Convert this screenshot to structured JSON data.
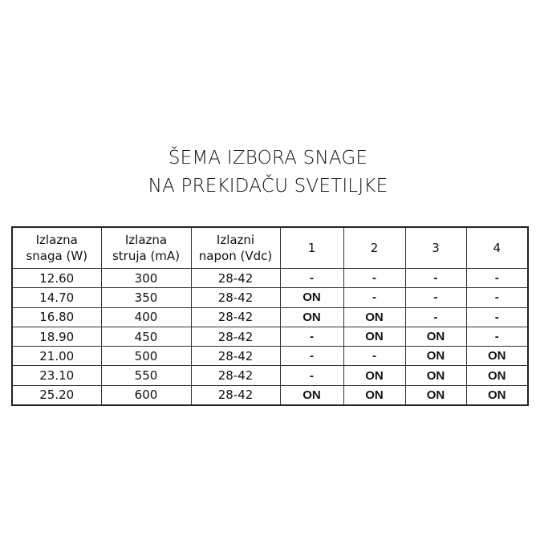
{
  "title": {
    "line1": "ŠEMA IZBORA SNAGE",
    "line2": "NA PREKIDAČU SVETILJKE"
  },
  "table": {
    "headers": [
      {
        "line1": "Izlazna",
        "line2": "snaga (W)"
      },
      {
        "line1": "Izlazna",
        "line2": "struja (mA)"
      },
      {
        "line1": "Izlazni",
        "line2": "napon (Vdc)"
      },
      {
        "line1": "1",
        "line2": ""
      },
      {
        "line1": "2",
        "line2": ""
      },
      {
        "line1": "3",
        "line2": ""
      },
      {
        "line1": "4",
        "line2": ""
      }
    ],
    "rows": [
      [
        "12.60",
        "300",
        "28-42",
        "-",
        "-",
        "-",
        "-"
      ],
      [
        "14.70",
        "350",
        "28-42",
        "ON",
        "-",
        "-",
        "-"
      ],
      [
        "16.80",
        "400",
        "28-42",
        "ON",
        "ON",
        "-",
        "-"
      ],
      [
        "18.90",
        "450",
        "28-42",
        "-",
        "ON",
        "ON",
        "-"
      ],
      [
        "21.00",
        "500",
        "28-42",
        "-",
        "-",
        "ON",
        "ON"
      ],
      [
        "23.10",
        "550",
        "28-42",
        "-",
        "ON",
        "ON",
        "ON"
      ],
      [
        "25.20",
        "600",
        "28-42",
        "ON",
        "ON",
        "ON",
        "ON"
      ]
    ]
  }
}
